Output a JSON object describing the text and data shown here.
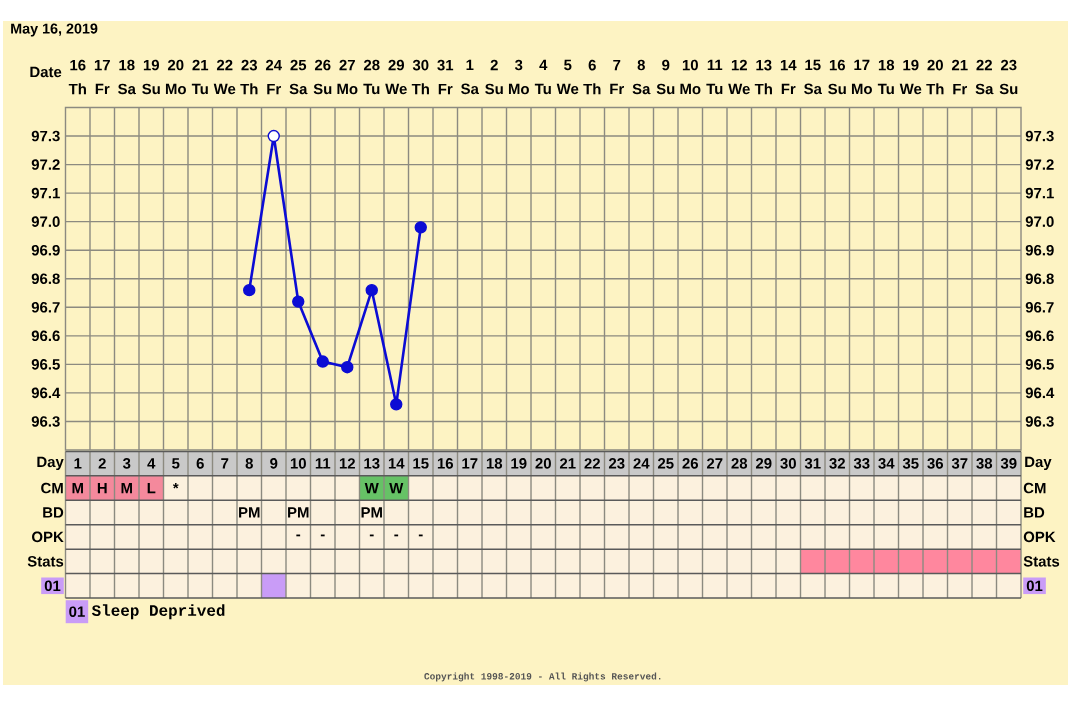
{
  "chart_data": [
    {
      "type": "line",
      "title": "May 16, 2019",
      "xlabel": "Date",
      "x2label": "Day",
      "categories": [
        "16 Th",
        "17 Fr",
        "18 Sa",
        "19 Su",
        "20 Mo",
        "21 Tu",
        "22 We",
        "23 Th",
        "24 Fr",
        "25 Sa",
        "26 Su",
        "27 Mo",
        "28 Tu",
        "29 We",
        "30 Th",
        "31 Fr",
        "1 Sa",
        "2 Su",
        "3 Mo",
        "4 Tu",
        "5 We",
        "6 Th",
        "7 Fr",
        "8 Sa",
        "9 Su",
        "10 Mo",
        "11 Tu",
        "12 We",
        "13 Th",
        "14 Fr",
        "15 Sa",
        "16 Su",
        "17 Mo",
        "18 Tu",
        "19 We",
        "20 Th",
        "21 Fr",
        "22 Sa",
        "23 Su"
      ],
      "series": [
        {
          "color": "#0c0cd4",
          "colors": [
            null,
            null,
            null,
            null,
            null,
            null,
            null,
            "#0c0cd4",
            "#ffffff",
            "#0c0cd4",
            "#0c0cd4",
            "#0c0cd4",
            "#0c0cd4",
            "#0c0cd4",
            "#0c0cd4",
            null,
            null,
            null,
            null,
            null,
            null,
            null,
            null,
            null,
            null,
            null,
            null,
            null,
            null,
            null,
            null,
            null,
            null,
            null,
            null,
            null,
            null,
            null,
            null
          ],
          "values": [
            null,
            null,
            null,
            null,
            null,
            null,
            null,
            96.76,
            97.3,
            96.72,
            96.51,
            96.49,
            96.76,
            96.36,
            96.98,
            null,
            null,
            null,
            null,
            null,
            null,
            null,
            null,
            null,
            null,
            null,
            null,
            null,
            null,
            null,
            null,
            null,
            null,
            null,
            null,
            null,
            null,
            null,
            null
          ]
        }
      ],
      "x2lim": [
        0.5,
        39.5
      ],
      "x2ticks": [
        1,
        2,
        3,
        4,
        5,
        6,
        7,
        8,
        9,
        10,
        11,
        12,
        13,
        14,
        15,
        16,
        17,
        18,
        19,
        20,
        21,
        22,
        23,
        24,
        25,
        26,
        27,
        28,
        29,
        30,
        31,
        32,
        33,
        34,
        35,
        36,
        37,
        38,
        39
      ],
      "ylim": [
        96.2,
        97.4
      ],
      "yticks": [
        96.3,
        96.4,
        96.5,
        96.6,
        96.7,
        96.8,
        96.9,
        {
          "value": 97,
          "label": "97.0"
        },
        97.1,
        97.2,
        97.3
      ],
      "y2lim": [
        96.2,
        97.4
      ],
      "y2ticks": [
        96.3,
        96.4,
        96.5,
        96.6,
        96.7,
        96.8,
        96.9,
        {
          "value": 97,
          "label": "97.0"
        },
        97.1,
        97.2,
        97.3
      ],
      "grid": true,
      "marker": "circle",
      "line_style": "solid"
    },
    {
      "type": "other",
      "y_categories": [
        "CM",
        "BD",
        "OPK",
        "Stats",
        "01"
      ],
      "y2_categories": [
        "CM",
        "BD",
        "OPK",
        "Stats",
        "01"
      ],
      "cell_labels": [
        [
          "M",
          "H",
          "M",
          "L",
          "*",
          null,
          null,
          null,
          null,
          null,
          null,
          null,
          "W",
          "W",
          null,
          null,
          null,
          null,
          null,
          null,
          null,
          null,
          null,
          null,
          null,
          null,
          null,
          null,
          null,
          null,
          null,
          null,
          null,
          null,
          null,
          null,
          null,
          null,
          null
        ],
        [
          null,
          null,
          null,
          null,
          null,
          null,
          null,
          "PM",
          null,
          "PM",
          null,
          null,
          "PM",
          null,
          null,
          null,
          null,
          null,
          null,
          null,
          null,
          null,
          null,
          null,
          null,
          null,
          null,
          null,
          null,
          null,
          null,
          null,
          null,
          null,
          null,
          null,
          null,
          null,
          null
        ],
        [
          null,
          null,
          null,
          null,
          null,
          null,
          null,
          null,
          null,
          "-",
          "-",
          null,
          "-",
          "-",
          "-",
          null,
          null,
          null,
          null,
          null,
          null,
          null,
          null,
          null,
          null,
          null,
          null,
          null,
          null,
          null,
          null,
          null,
          null,
          null,
          null,
          null,
          null,
          null,
          null
        ],
        [
          null,
          null,
          null,
          null,
          null,
          null,
          null,
          null,
          null,
          null,
          null,
          null,
          null,
          null,
          null,
          null,
          null,
          null,
          null,
          null,
          null,
          null,
          null,
          null,
          null,
          null,
          null,
          null,
          null,
          null,
          null,
          null,
          null,
          null,
          null,
          null,
          null,
          null,
          null
        ],
        [
          null,
          null,
          null,
          null,
          null,
          null,
          null,
          null,
          null,
          null,
          null,
          null,
          null,
          null,
          null,
          null,
          null,
          null,
          null,
          null,
          null,
          null,
          null,
          null,
          null,
          null,
          null,
          null,
          null,
          null,
          null,
          null,
          null,
          null,
          null,
          null,
          null,
          null,
          null
        ]
      ],
      "colors": [
        [
          "#f4899c",
          "#f4899c",
          "#f4899c",
          "#f4899c",
          null,
          null,
          null,
          null,
          null,
          null,
          null,
          null,
          "#66c266",
          "#66c266",
          null,
          null,
          null,
          null,
          null,
          null,
          null,
          null,
          null,
          null,
          null,
          null,
          null,
          null,
          null,
          null,
          null,
          null,
          null,
          null,
          null,
          null,
          null,
          null,
          null
        ],
        [
          null,
          null,
          null,
          null,
          null,
          null,
          null,
          null,
          null,
          null,
          null,
          null,
          null,
          null,
          null,
          null,
          null,
          null,
          null,
          null,
          null,
          null,
          null,
          null,
          null,
          null,
          null,
          null,
          null,
          null,
          null,
          null,
          null,
          null,
          null,
          null,
          null,
          null,
          null
        ],
        [
          null,
          null,
          null,
          null,
          null,
          null,
          null,
          null,
          null,
          null,
          null,
          null,
          null,
          null,
          null,
          null,
          null,
          null,
          null,
          null,
          null,
          null,
          null,
          null,
          null,
          null,
          null,
          null,
          null,
          null,
          null,
          null,
          null,
          null,
          null,
          null,
          null,
          null,
          null
        ],
        [
          null,
          null,
          null,
          null,
          null,
          null,
          null,
          null,
          null,
          null,
          null,
          null,
          null,
          null,
          null,
          null,
          null,
          null,
          null,
          null,
          null,
          null,
          null,
          null,
          null,
          null,
          null,
          null,
          null,
          null,
          "#ff879e",
          "#ff879e",
          "#ff879e",
          "#ff879e",
          "#ff879e",
          "#ff879e",
          "#ff879e",
          "#ff879e",
          "#ff879e"
        ],
        [
          null,
          null,
          null,
          null,
          null,
          null,
          null,
          null,
          "#c99cf7",
          null,
          null,
          null,
          null,
          null,
          null,
          null,
          null,
          null,
          null,
          null,
          null,
          null,
          null,
          null,
          null,
          null,
          null,
          null,
          null,
          null,
          null,
          null,
          null,
          null,
          null,
          null,
          null,
          null,
          null
        ]
      ],
      "annotations": [
        "Sleep Deprived",
        "Copyright 1998-2019 - All Rights Reserved."
      ]
    }
  ]
}
